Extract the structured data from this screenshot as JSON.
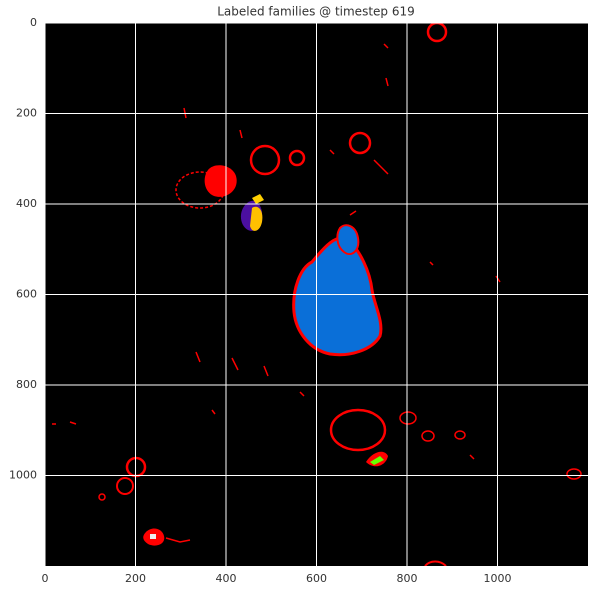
{
  "chart_data": {
    "type": "image",
    "title": "Labeled families @ timestep 619",
    "xlim": [
      0,
      1200
    ],
    "ylim": [
      1200,
      0
    ],
    "xticks": [
      0,
      200,
      400,
      600,
      800,
      1000
    ],
    "yticks": [
      0,
      200,
      400,
      600,
      800,
      1000
    ],
    "grid": true,
    "grid_color": "#ffffff",
    "background": "#000000"
  }
}
